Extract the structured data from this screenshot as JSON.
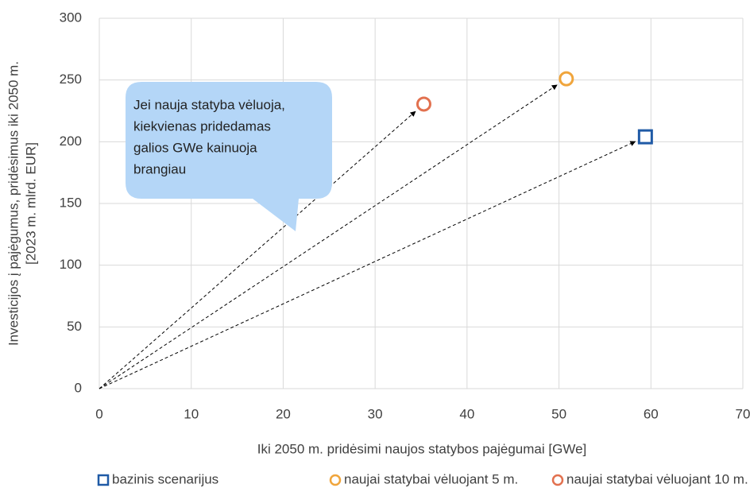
{
  "chart_data": {
    "type": "scatter",
    "xlabel": "Iki 2050 m. pridėsimi naujos statybos pajėgumai [GWe]",
    "ylabel": [
      "Investicijos į pajėgumus, pridėsimus  iki 2050 m.",
      "[2023 m. mlrd. EUR]"
    ],
    "xlim": [
      0,
      70
    ],
    "xticks": [
      0,
      10,
      20,
      30,
      40,
      50,
      60,
      70
    ],
    "ylim": [
      0,
      300
    ],
    "yticks": [
      0,
      50,
      100,
      150,
      200,
      250,
      300
    ],
    "grid": true,
    "legend": "bottom",
    "series": [
      {
        "name": "bazinis scenarijus",
        "color": "#1f5aa6",
        "marker": "square",
        "x": [
          59.4
        ],
        "y": [
          204
        ]
      },
      {
        "name": "naujai statybai vėluojant 5 m.",
        "color": "#f0a53c",
        "marker": "circle",
        "x": [
          50.8
        ],
        "y": [
          251
        ]
      },
      {
        "name": "naujai statybai vėluojant 10 m.",
        "color": "#e2714f",
        "marker": "circle",
        "x": [
          35.3
        ],
        "y": [
          230.5
        ]
      }
    ],
    "annotation": [
      "Jei nauja statyba vėluoja,",
      "kiekvienas pridedamas",
      "galios GWe kainuoja",
      "brangiau"
    ]
  }
}
